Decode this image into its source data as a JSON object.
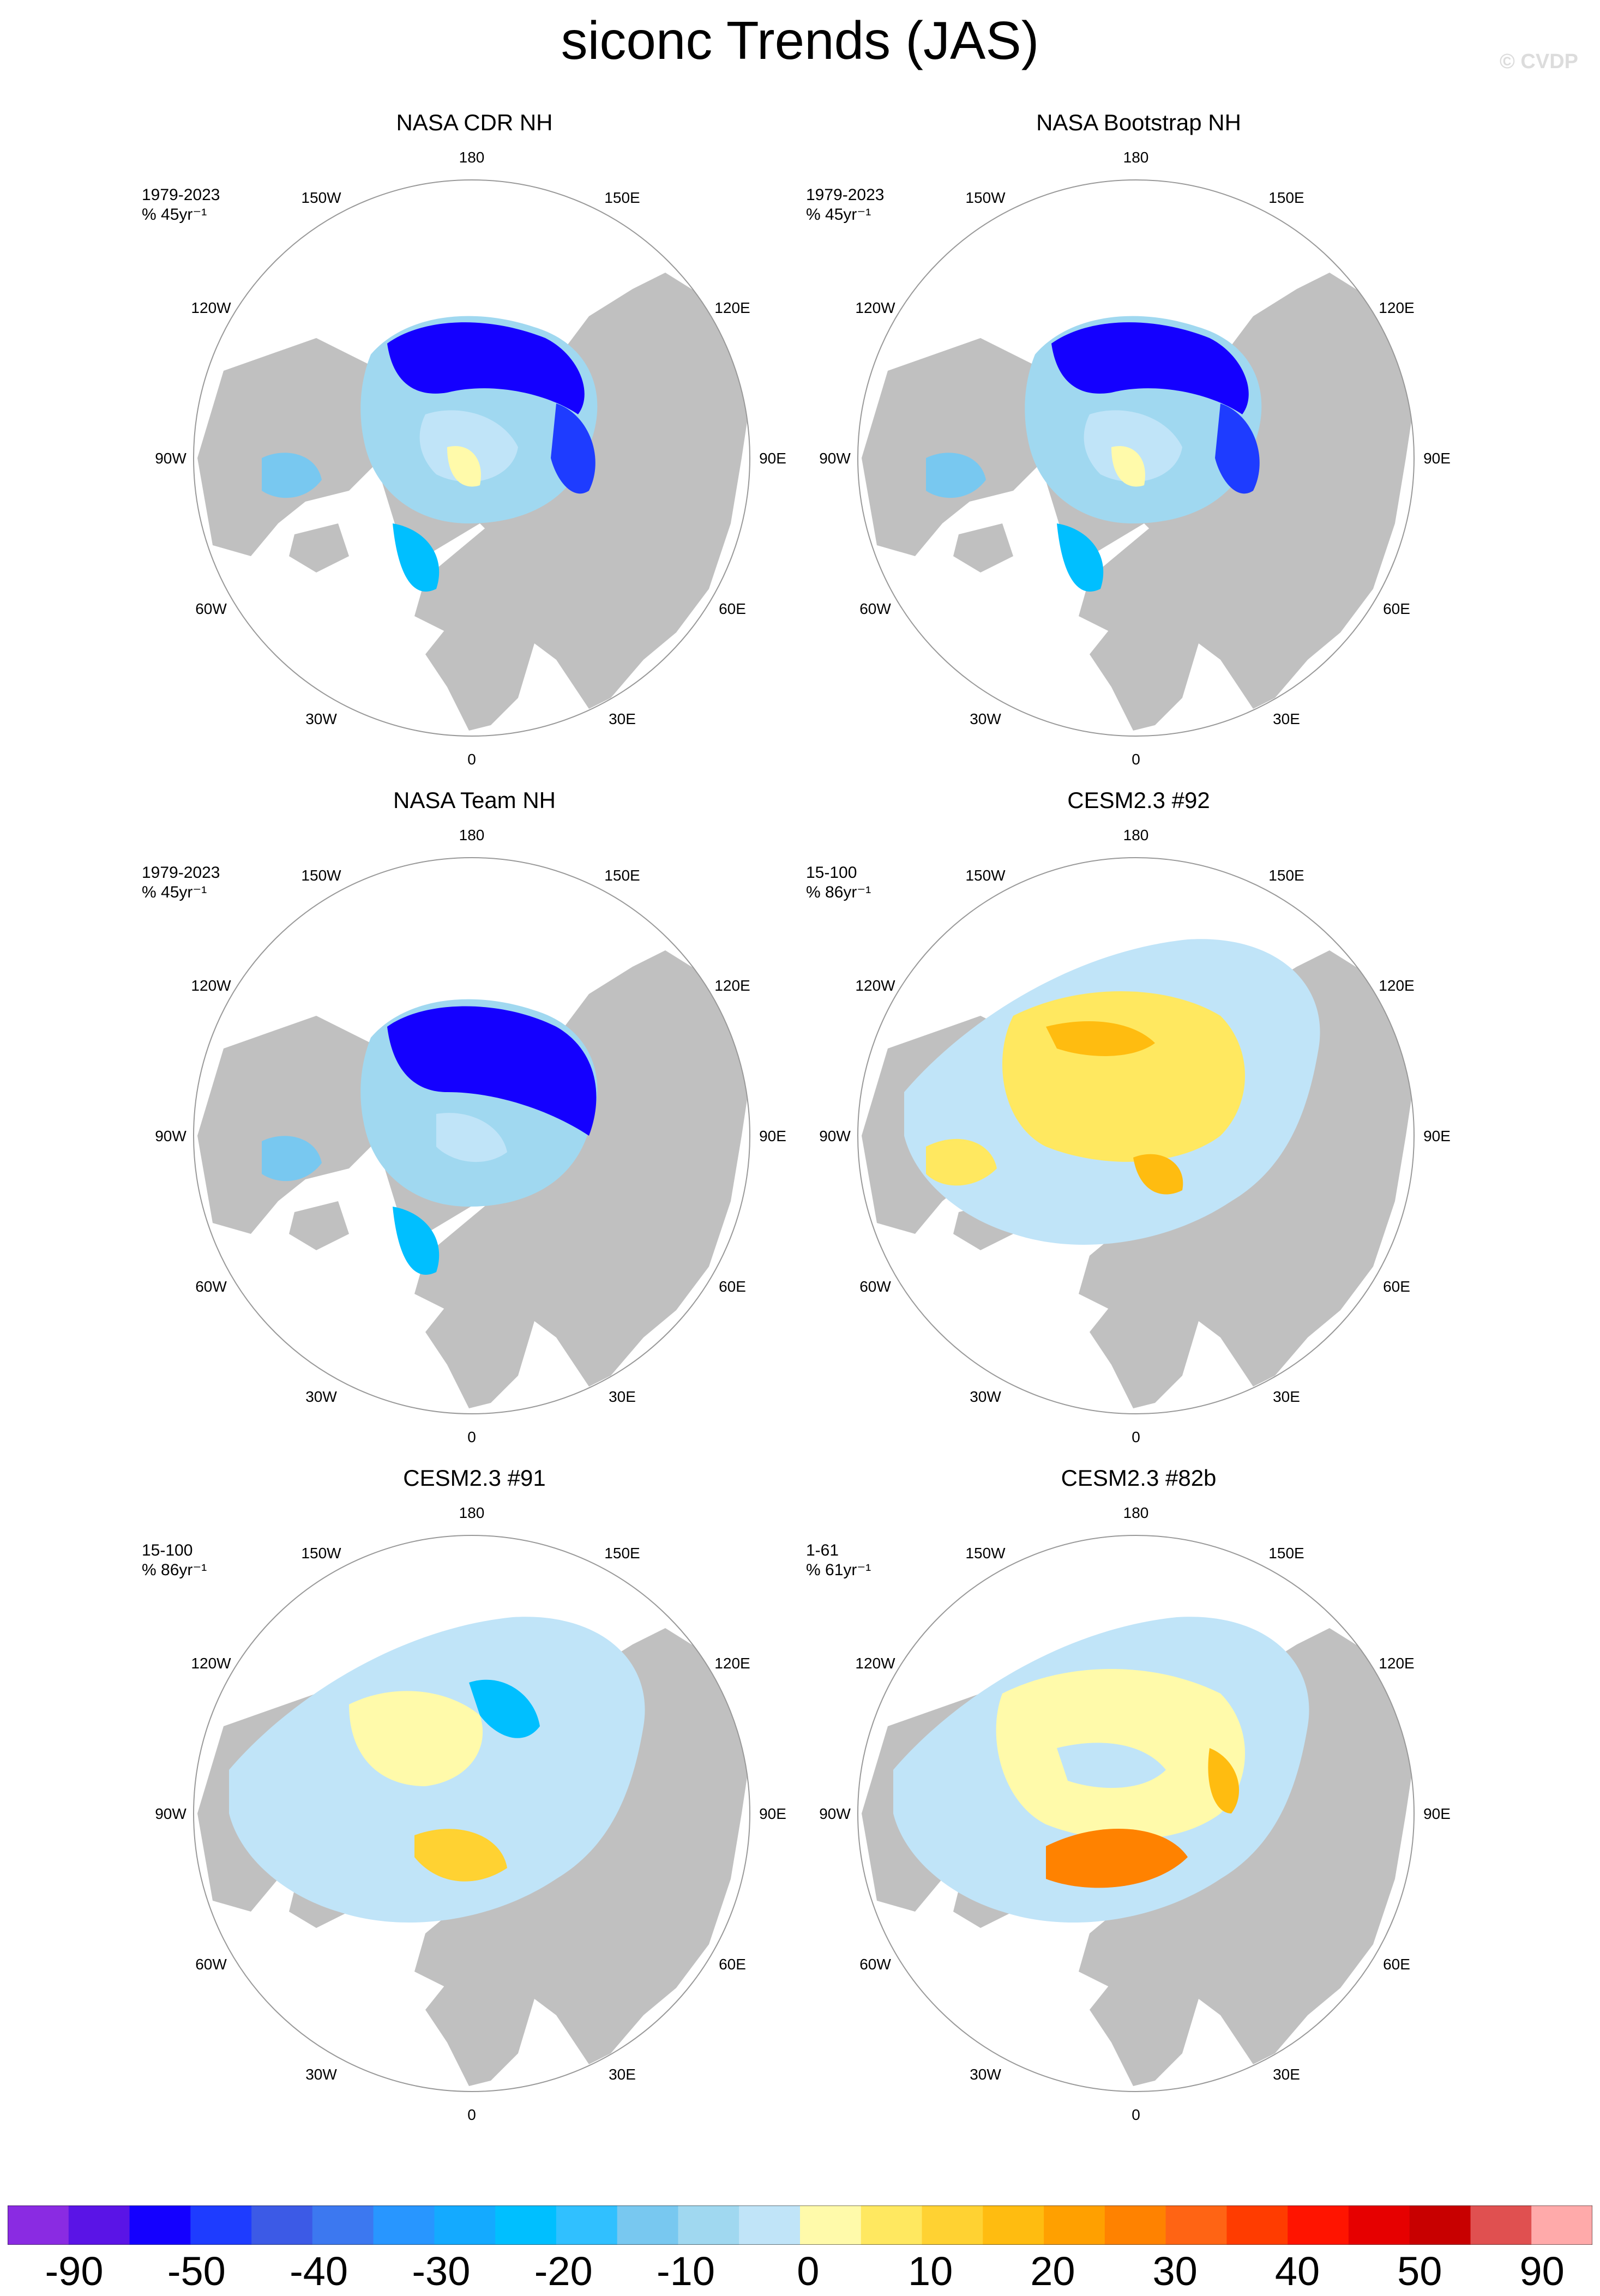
{
  "figure": {
    "title": "siconc Trends (JAS)",
    "watermark": "© CVDP"
  },
  "longitude_labels": [
    "180",
    "150E",
    "120E",
    "90E",
    "60E",
    "30E",
    "0",
    "30W",
    "60W",
    "90W",
    "120W",
    "150W"
  ],
  "panels": [
    {
      "id": "nasa-cdr",
      "title": "NASA CDR NH",
      "note": "1979-2023\n% 45yr⁻¹",
      "pattern": "obs_cdr"
    },
    {
      "id": "nasa-bootstrap",
      "title": "NASA Bootstrap NH",
      "note": "1979-2023\n% 45yr⁻¹",
      "pattern": "obs_bootstrap"
    },
    {
      "id": "nasa-team",
      "title": "NASA Team NH",
      "note": "1979-2023\n% 45yr⁻¹",
      "pattern": "obs_team"
    },
    {
      "id": "cesm-92",
      "title": "CESM2.3 #92",
      "note": "15-100\n% 86yr⁻¹",
      "pattern": "model_92"
    },
    {
      "id": "cesm-91",
      "title": "CESM2.3 #91",
      "note": "15-100\n% 86yr⁻¹",
      "pattern": "model_91"
    },
    {
      "id": "cesm-82b",
      "title": "CESM2.3 #82b",
      "note": "1-61\n% 61yr⁻¹",
      "pattern": "model_82b"
    }
  ],
  "colorbar": {
    "colors": [
      "#8a2be2",
      "#5a14e6",
      "#1400ff",
      "#1e3cff",
      "#3c5ae6",
      "#3c78f0",
      "#2896ff",
      "#14aaff",
      "#00bfff",
      "#30c0ff",
      "#78c8f0",
      "#a0d8f0",
      "#c0e4f8",
      "#fffaaa",
      "#ffe860",
      "#ffd232",
      "#ffbc10",
      "#ffa000",
      "#ff8200",
      "#ff6414",
      "#ff3c00",
      "#ff1400",
      "#e60000",
      "#c80000",
      "#e05050",
      "#ffaaaa"
    ],
    "tick_labels": [
      "-90",
      "-50",
      "-40",
      "-30",
      "-20",
      "-10",
      "0",
      "10",
      "20",
      "30",
      "40",
      "50",
      "90"
    ]
  },
  "colors": {
    "land": "#c0c0c0",
    "ocean": "#ffffff",
    "outline": "#999999"
  }
}
